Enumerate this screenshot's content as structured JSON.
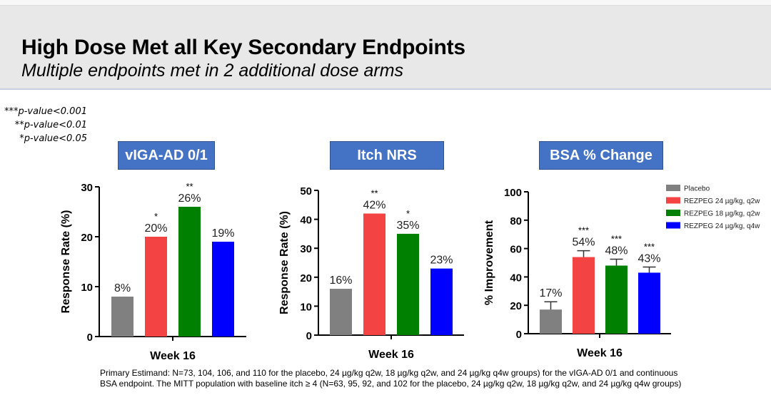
{
  "header": {
    "title": "High Dose Met all Key Secondary Endpoints",
    "subtitle": "Multiple endpoints met in 2 additional dose arms"
  },
  "p_value_notes": [
    "***p-value<0.001",
    "**p-value<0.01",
    "*p-value<0.05"
  ],
  "legend": {
    "placement": "right",
    "entries": [
      "Placebo",
      "REZPEG 24 µg/kg, q2w",
      "REZPEG 18 µg/kg, q2w",
      "REZPEG 24 µg/kg, q4w"
    ]
  },
  "colors": {
    "Placebo": "#808080",
    "REZPEG 24 µg/kg, q2w": "#f44343",
    "REZPEG 18 µg/kg, q2w": "#008000",
    "REZPEG 24 µg/kg, q4w": "#0000ff"
  },
  "footnote": [
    "Primary Estimand: N=73, 104, 106, and 110 for the placebo, 24 µg/kg q2w, 18 µg/kg q2w, and 24 µg/kg q4w groups) for the vIGA-AD 0/1 and continuous",
    "BSA endpoint. The MITT population with baseline itch ≥ 4 (N=63, 95, 92, and 102 for the placebo, 24 µg/kg q2w, 18 µg/kg q2w, and 24 µg/kg q4w groups)"
  ],
  "chart_data": [
    {
      "type": "bar",
      "title": "vIGA-AD 0/1",
      "xlabel": "Week 16",
      "ylabel": "Response Rate (%)",
      "ylim": [
        0,
        30
      ],
      "yticks": [
        0,
        10,
        20,
        30
      ],
      "categories": [
        "Week 16"
      ],
      "series": [
        {
          "name": "Placebo",
          "values": [
            8
          ],
          "label": "8%",
          "sig": ""
        },
        {
          "name": "REZPEG 24 µg/kg, q2w",
          "values": [
            20
          ],
          "label": "20%",
          "sig": "*"
        },
        {
          "name": "REZPEG 18 µg/kg, q2w",
          "values": [
            26
          ],
          "label": "26%",
          "sig": "**"
        },
        {
          "name": "REZPEG 24 µg/kg, q4w",
          "values": [
            19
          ],
          "label": "19%",
          "sig": ""
        }
      ]
    },
    {
      "type": "bar",
      "title": "Itch NRS",
      "xlabel": "Week 16",
      "ylabel": "Response Rate (%)",
      "ylim": [
        0,
        50
      ],
      "yticks": [
        0,
        10,
        20,
        30,
        40,
        50
      ],
      "categories": [
        "Week 16"
      ],
      "series": [
        {
          "name": "Placebo",
          "values": [
            16
          ],
          "label": "16%",
          "sig": ""
        },
        {
          "name": "REZPEG 24 µg/kg, q2w",
          "values": [
            42
          ],
          "label": "42%",
          "sig": "**"
        },
        {
          "name": "REZPEG 18 µg/kg, q2w",
          "values": [
            35
          ],
          "label": "35%",
          "sig": "*"
        },
        {
          "name": "REZPEG 24 µg/kg, q4w",
          "values": [
            23
          ],
          "label": "23%",
          "sig": ""
        }
      ]
    },
    {
      "type": "bar",
      "title": "BSA % Change",
      "xlabel": "Week 16",
      "ylabel": "% Improvement",
      "ylim": [
        0,
        100
      ],
      "yticks": [
        0,
        20,
        40,
        60,
        80,
        100
      ],
      "categories": [
        "Week 16"
      ],
      "series": [
        {
          "name": "Placebo",
          "values": [
            17
          ],
          "error": [
            5.5
          ],
          "label": "17%",
          "sig": ""
        },
        {
          "name": "REZPEG 24 µg/kg, q2w",
          "values": [
            54
          ],
          "error": [
            4.5
          ],
          "label": "54%",
          "sig": "***"
        },
        {
          "name": "REZPEG 18 µg/kg, q2w",
          "values": [
            48
          ],
          "error": [
            4.5
          ],
          "label": "48%",
          "sig": "***"
        },
        {
          "name": "REZPEG 24 µg/kg, q4w",
          "values": [
            43
          ],
          "error": [
            4
          ],
          "label": "43%",
          "sig": "***"
        }
      ]
    }
  ]
}
